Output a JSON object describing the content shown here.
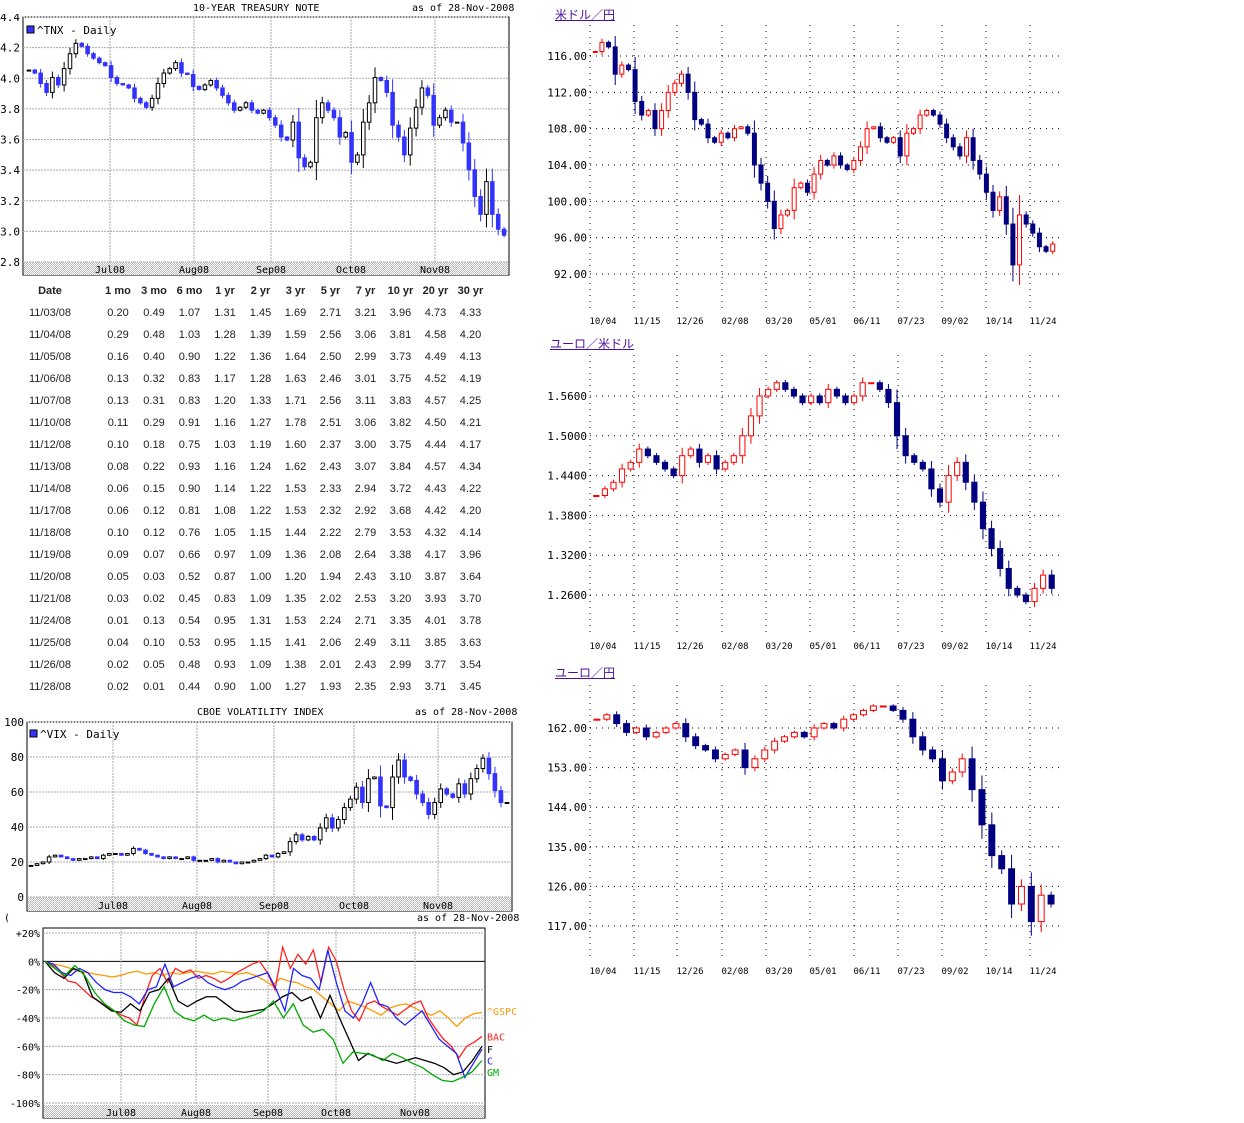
{
  "tnx": {
    "title": "10-YEAR TREASURY NOTE",
    "asof": "as of 28-Nov-2008",
    "legend": "^TNX - Daily",
    "chart_data": {
      "type": "candlestick",
      "ylim": [
        2.8,
        4.4
      ],
      "yticks": [
        "2.8",
        "3.0",
        "3.2",
        "3.4",
        "3.6",
        "3.8",
        "4.0",
        "4.2",
        "4.4"
      ],
      "xticks": [
        "Jul08",
        "Aug08",
        "Sep08",
        "Oct08",
        "Nov08"
      ],
      "grid": true,
      "legend": "top-left",
      "close": [
        4.07,
        4.05,
        3.98,
        3.92,
        4.02,
        3.97,
        4.08,
        4.18,
        4.25,
        4.23,
        4.18,
        4.15,
        4.12,
        4.1,
        4.02,
        3.98,
        3.97,
        3.95,
        3.88,
        3.85,
        3.82,
        3.88,
        3.98,
        4.05,
        4.08,
        4.12,
        4.05,
        4.04,
        3.96,
        3.94,
        3.97,
        4.0,
        3.95,
        3.9,
        3.85,
        3.8,
        3.82,
        3.85,
        3.8,
        3.78,
        3.8,
        3.75,
        3.7,
        3.62,
        3.6,
        3.72,
        3.48,
        3.42,
        3.45,
        3.75,
        3.85,
        3.8,
        3.75,
        3.62,
        3.65,
        3.45,
        3.5,
        3.72,
        3.85,
        4.02,
        4.0,
        3.92,
        3.7,
        3.62,
        3.5,
        3.68,
        3.82,
        3.95,
        3.9,
        3.7,
        3.75,
        3.8,
        3.72,
        3.72,
        3.58,
        3.4,
        3.22,
        3.1,
        3.32,
        3.1,
        3.0,
        2.96
      ]
    }
  },
  "yields": {
    "headers": [
      "Date",
      "1 mo",
      "3 mo",
      "6 mo",
      "1 yr",
      "2 yr",
      "3 yr",
      "5 yr",
      "7 yr",
      "10 yr",
      "20 yr",
      "30 yr"
    ],
    "rows": [
      [
        "11/03/08",
        "0.20",
        "0.49",
        "1.07",
        "1.31",
        "1.45",
        "1.69",
        "2.71",
        "3.21",
        "3.96",
        "4.73",
        "4.33"
      ],
      [
        "11/04/08",
        "0.29",
        "0.48",
        "1.03",
        "1.28",
        "1.39",
        "1.59",
        "2.56",
        "3.06",
        "3.81",
        "4.58",
        "4.20"
      ],
      [
        "11/05/08",
        "0.16",
        "0.40",
        "0.90",
        "1.22",
        "1.36",
        "1.64",
        "2.50",
        "2.99",
        "3.73",
        "4.49",
        "4.13"
      ],
      [
        "11/06/08",
        "0.13",
        "0.32",
        "0.83",
        "1.17",
        "1.28",
        "1.63",
        "2.46",
        "3.01",
        "3.75",
        "4.52",
        "4.19"
      ],
      [
        "11/07/08",
        "0.13",
        "0.31",
        "0.83",
        "1.20",
        "1.33",
        "1.71",
        "2.56",
        "3.11",
        "3.83",
        "4.57",
        "4.25"
      ],
      [
        "11/10/08",
        "0.11",
        "0.29",
        "0.91",
        "1.16",
        "1.27",
        "1.78",
        "2.51",
        "3.06",
        "3.82",
        "4.50",
        "4.21"
      ],
      [
        "11/12/08",
        "0.10",
        "0.18",
        "0.75",
        "1.03",
        "1.19",
        "1.60",
        "2.37",
        "3.00",
        "3.75",
        "4.44",
        "4.17"
      ],
      [
        "11/13/08",
        "0.08",
        "0.22",
        "0.93",
        "1.16",
        "1.24",
        "1.62",
        "2.43",
        "3.07",
        "3.84",
        "4.57",
        "4.34"
      ],
      [
        "11/14/08",
        "0.06",
        "0.15",
        "0.90",
        "1.14",
        "1.22",
        "1.53",
        "2.33",
        "2.94",
        "3.72",
        "4.43",
        "4.22"
      ],
      [
        "11/17/08",
        "0.06",
        "0.12",
        "0.81",
        "1.08",
        "1.22",
        "1.53",
        "2.32",
        "2.92",
        "3.68",
        "4.42",
        "4.20"
      ],
      [
        "11/18/08",
        "0.10",
        "0.12",
        "0.76",
        "1.05",
        "1.15",
        "1.44",
        "2.22",
        "2.79",
        "3.53",
        "4.32",
        "4.14"
      ],
      [
        "11/19/08",
        "0.09",
        "0.07",
        "0.66",
        "0.97",
        "1.09",
        "1.36",
        "2.08",
        "2.64",
        "3.38",
        "4.17",
        "3.96"
      ],
      [
        "11/20/08",
        "0.05",
        "0.03",
        "0.52",
        "0.87",
        "1.00",
        "1.20",
        "1.94",
        "2.43",
        "3.10",
        "3.87",
        "3.64"
      ],
      [
        "11/21/08",
        "0.03",
        "0.02",
        "0.45",
        "0.83",
        "1.09",
        "1.35",
        "2.02",
        "2.53",
        "3.20",
        "3.93",
        "3.70"
      ],
      [
        "11/24/08",
        "0.01",
        "0.13",
        "0.54",
        "0.95",
        "1.31",
        "1.53",
        "2.24",
        "2.71",
        "3.35",
        "4.01",
        "3.78"
      ],
      [
        "11/25/08",
        "0.04",
        "0.10",
        "0.53",
        "0.95",
        "1.15",
        "1.41",
        "2.06",
        "2.49",
        "3.11",
        "3.85",
        "3.63"
      ],
      [
        "11/26/08",
        "0.02",
        "0.05",
        "0.48",
        "0.93",
        "1.09",
        "1.38",
        "2.01",
        "2.43",
        "2.99",
        "3.77",
        "3.54"
      ],
      [
        "11/28/08",
        "0.02",
        "0.01",
        "0.44",
        "0.90",
        "1.00",
        "1.27",
        "1.93",
        "2.35",
        "2.93",
        "3.71",
        "3.45"
      ]
    ]
  },
  "vix": {
    "title": "CBOE VOLATILITY INDEX",
    "asof": "as of 28-Nov-2008",
    "legend": "^VIX - Daily",
    "chart_data": {
      "type": "candlestick",
      "ylim": [
        0,
        100
      ],
      "yticks": [
        "0",
        "20",
        "40",
        "60",
        "80",
        "100"
      ],
      "xticks": [
        "Jul08",
        "Aug08",
        "Sep08",
        "Oct08",
        "Nov08"
      ],
      "grid": true,
      "legend": "top-left",
      "close": [
        18,
        19,
        20,
        23,
        24,
        23,
        22,
        21,
        22,
        22,
        23,
        22,
        24,
        25,
        25,
        24,
        25,
        28,
        27,
        25,
        24,
        23,
        22,
        23,
        22,
        22,
        23,
        21,
        21,
        21,
        22,
        20,
        21,
        20,
        19,
        20,
        20,
        21,
        22,
        24,
        23,
        25,
        26,
        32,
        36,
        33,
        35,
        33,
        40,
        46,
        40,
        45,
        52,
        57,
        64,
        55,
        69,
        70,
        53,
        52,
        70,
        80,
        70,
        68,
        60,
        55,
        48,
        55,
        63,
        60,
        58,
        66,
        60,
        69,
        75,
        81,
        72,
        62,
        55,
        55
      ]
    }
  },
  "stocks": {
    "paren": "(",
    "asof": "as of 28-Nov-2008",
    "chart_data": {
      "type": "line",
      "ylim": [
        -100,
        20
      ],
      "yticks": [
        "+20%",
        "0%",
        "-20%",
        "-40%",
        "-60%",
        "-80%",
        "-100%"
      ],
      "xticks": [
        "Jul08",
        "Aug08",
        "Sep08",
        "Oct08",
        "Nov08"
      ],
      "grid": true,
      "legend": "right",
      "series": [
        {
          "name": "^GSPC",
          "color": "#ff9900",
          "values": [
            0,
            -2,
            -3,
            -5,
            -7,
            -8,
            -9,
            -10,
            -11,
            -10,
            -8,
            -7,
            -9,
            -8,
            -10,
            -8,
            -9,
            -8,
            -7,
            -8,
            -9,
            -7,
            -8,
            -9,
            -8,
            -10,
            -13,
            -17,
            -12,
            -14,
            -15,
            -18,
            -20,
            -25,
            -30,
            -35,
            -28,
            -30,
            -32,
            -35,
            -38,
            -33,
            -31,
            -30,
            -33,
            -36,
            -38,
            -35,
            -40,
            -46,
            -40,
            -37,
            -36
          ]
        },
        {
          "name": "BAC",
          "color": "#ff2222",
          "values": [
            0,
            -3,
            -8,
            -14,
            -15,
            -20,
            -25,
            -28,
            -32,
            -35,
            -38,
            -40,
            -45,
            -25,
            -10,
            -5,
            -15,
            -5,
            -8,
            -6,
            -12,
            -10,
            -12,
            -15,
            -12,
            -8,
            -5,
            -2,
            0,
            -8,
            -20,
            10,
            -5,
            5,
            -2,
            8,
            -15,
            10,
            0,
            -20,
            -35,
            -42,
            -30,
            -28,
            -32,
            -35,
            -38,
            -34,
            -30,
            -28,
            -40,
            -48,
            -55,
            -60,
            -68,
            -60,
            -57,
            -53
          ]
        },
        {
          "name": "F",
          "color": "#000000",
          "values": [
            0,
            -8,
            -12,
            -5,
            -8,
            -25,
            -30,
            -35,
            -36,
            -30,
            -35,
            -22,
            -20,
            -12,
            -28,
            -32,
            -28,
            -25,
            -25,
            -30,
            -35,
            -36,
            -35,
            -34,
            -30,
            -25,
            -22,
            -28,
            -25,
            -40,
            -24,
            -40,
            -55,
            -70,
            -65,
            -68,
            -70,
            -72,
            -70,
            -68,
            -70,
            -72,
            -75,
            -80,
            -78,
            -70,
            -60
          ]
        },
        {
          "name": "C",
          "color": "#2222ff",
          "values": [
            0,
            -2,
            -8,
            -10,
            -5,
            -8,
            -15,
            -20,
            -22,
            -22,
            -25,
            -30,
            -20,
            -18,
            -2,
            -18,
            -15,
            -12,
            -10,
            -15,
            -18,
            -20,
            -18,
            -14,
            -12,
            -10,
            -8,
            -20,
            -35,
            -5,
            -10,
            -12,
            -20,
            8,
            -15,
            -35,
            -40,
            -30,
            -15,
            -30,
            -32,
            -40,
            -45,
            -40,
            -35,
            -45,
            -55,
            -60,
            -65,
            -82,
            -72,
            -62
          ]
        },
        {
          "name": "GM",
          "color": "#00aa00",
          "values": [
            0,
            -5,
            -10,
            -3,
            -10,
            -22,
            -30,
            -35,
            -42,
            -45,
            -46,
            -30,
            -18,
            -35,
            -40,
            -42,
            -38,
            -42,
            -40,
            -42,
            -40,
            -38,
            -35,
            -28,
            -40,
            -30,
            -45,
            -50,
            -48,
            -55,
            -72,
            -64,
            -65,
            -66,
            -70,
            -65,
            -68,
            -72,
            -75,
            -80,
            -84,
            -85,
            -82,
            -78,
            -70
          ]
        }
      ]
    }
  },
  "fx": [
    {
      "label": "米ドル／円",
      "chart_data": {
        "type": "candlestick",
        "ylim": [
          89,
          118
        ],
        "yticks": [
          "92.00",
          "96.00",
          "100.00",
          "104.00",
          "108.00",
          "112.00",
          "116.00"
        ],
        "xticks": [
          "10/04",
          "11/15",
          "12/26",
          "02/08",
          "03/20",
          "05/01",
          "06/11",
          "07/23",
          "09/02",
          "10/14",
          "11/24"
        ],
        "grid": "dotted",
        "close": [
          116.5,
          117.5,
          117,
          114,
          115,
          114.5,
          111,
          109.5,
          110,
          108,
          110,
          112,
          113,
          114,
          112,
          109,
          108.5,
          107,
          106.5,
          107.5,
          107,
          108,
          108.2,
          107.5,
          104,
          102,
          100,
          97,
          98.5,
          99,
          101.5,
          102,
          101,
          103,
          104.5,
          104,
          105,
          104,
          103.5,
          104.5,
          106,
          108,
          108.2,
          107,
          106.5,
          107,
          105,
          107.5,
          108,
          109.5,
          110,
          109.5,
          108.5,
          107,
          106,
          105,
          107,
          104.5,
          103,
          101,
          99,
          100.5,
          97.5,
          93,
          98.5,
          97.5,
          96.5,
          95,
          94.5,
          95.3
        ]
      }
    },
    {
      "label": "ユーロ／米ドル",
      "chart_data": {
        "type": "candlestick",
        "ylim": [
          1.22,
          1.6
        ],
        "yticks": [
          "1.2600",
          "1.3200",
          "1.3800",
          "1.4400",
          "1.5000",
          "1.5600"
        ],
        "xticks": [
          "10/04",
          "11/15",
          "12/26",
          "02/08",
          "03/20",
          "05/01",
          "06/11",
          "07/23",
          "09/02",
          "10/14",
          "11/24"
        ],
        "grid": "dotted",
        "close": [
          1.41,
          1.42,
          1.43,
          1.45,
          1.46,
          1.48,
          1.47,
          1.46,
          1.45,
          1.44,
          1.47,
          1.48,
          1.46,
          1.47,
          1.45,
          1.46,
          1.47,
          1.5,
          1.53,
          1.56,
          1.57,
          1.58,
          1.57,
          1.56,
          1.55,
          1.56,
          1.55,
          1.57,
          1.56,
          1.55,
          1.56,
          1.58,
          1.58,
          1.57,
          1.55,
          1.5,
          1.47,
          1.46,
          1.45,
          1.42,
          1.4,
          1.44,
          1.46,
          1.43,
          1.4,
          1.36,
          1.33,
          1.3,
          1.27,
          1.26,
          1.25,
          1.27,
          1.29,
          1.27
        ]
      }
    },
    {
      "label": "ユーロ／円",
      "chart_data": {
        "type": "candlestick",
        "ylim": [
          110,
          168
        ],
        "yticks": [
          "117.00",
          "126.00",
          "135.00",
          "144.00",
          "153.00",
          "162.00"
        ],
        "xticks": [
          "10/04",
          "11/15",
          "12/26",
          "02/08",
          "03/20",
          "05/01",
          "06/11",
          "07/23",
          "09/02",
          "10/14",
          "11/24"
        ],
        "grid": "dotted",
        "close": [
          164,
          165,
          163,
          161,
          162,
          160,
          161,
          162,
          163,
          160,
          158,
          157,
          155,
          156,
          157,
          153,
          155,
          157,
          159,
          160,
          161,
          160,
          162,
          163,
          162,
          164,
          165,
          166,
          167,
          167,
          166,
          164,
          160,
          157,
          155,
          150,
          152,
          155,
          148,
          140,
          133,
          130,
          122,
          126,
          118,
          124,
          122
        ]
      }
    }
  ]
}
